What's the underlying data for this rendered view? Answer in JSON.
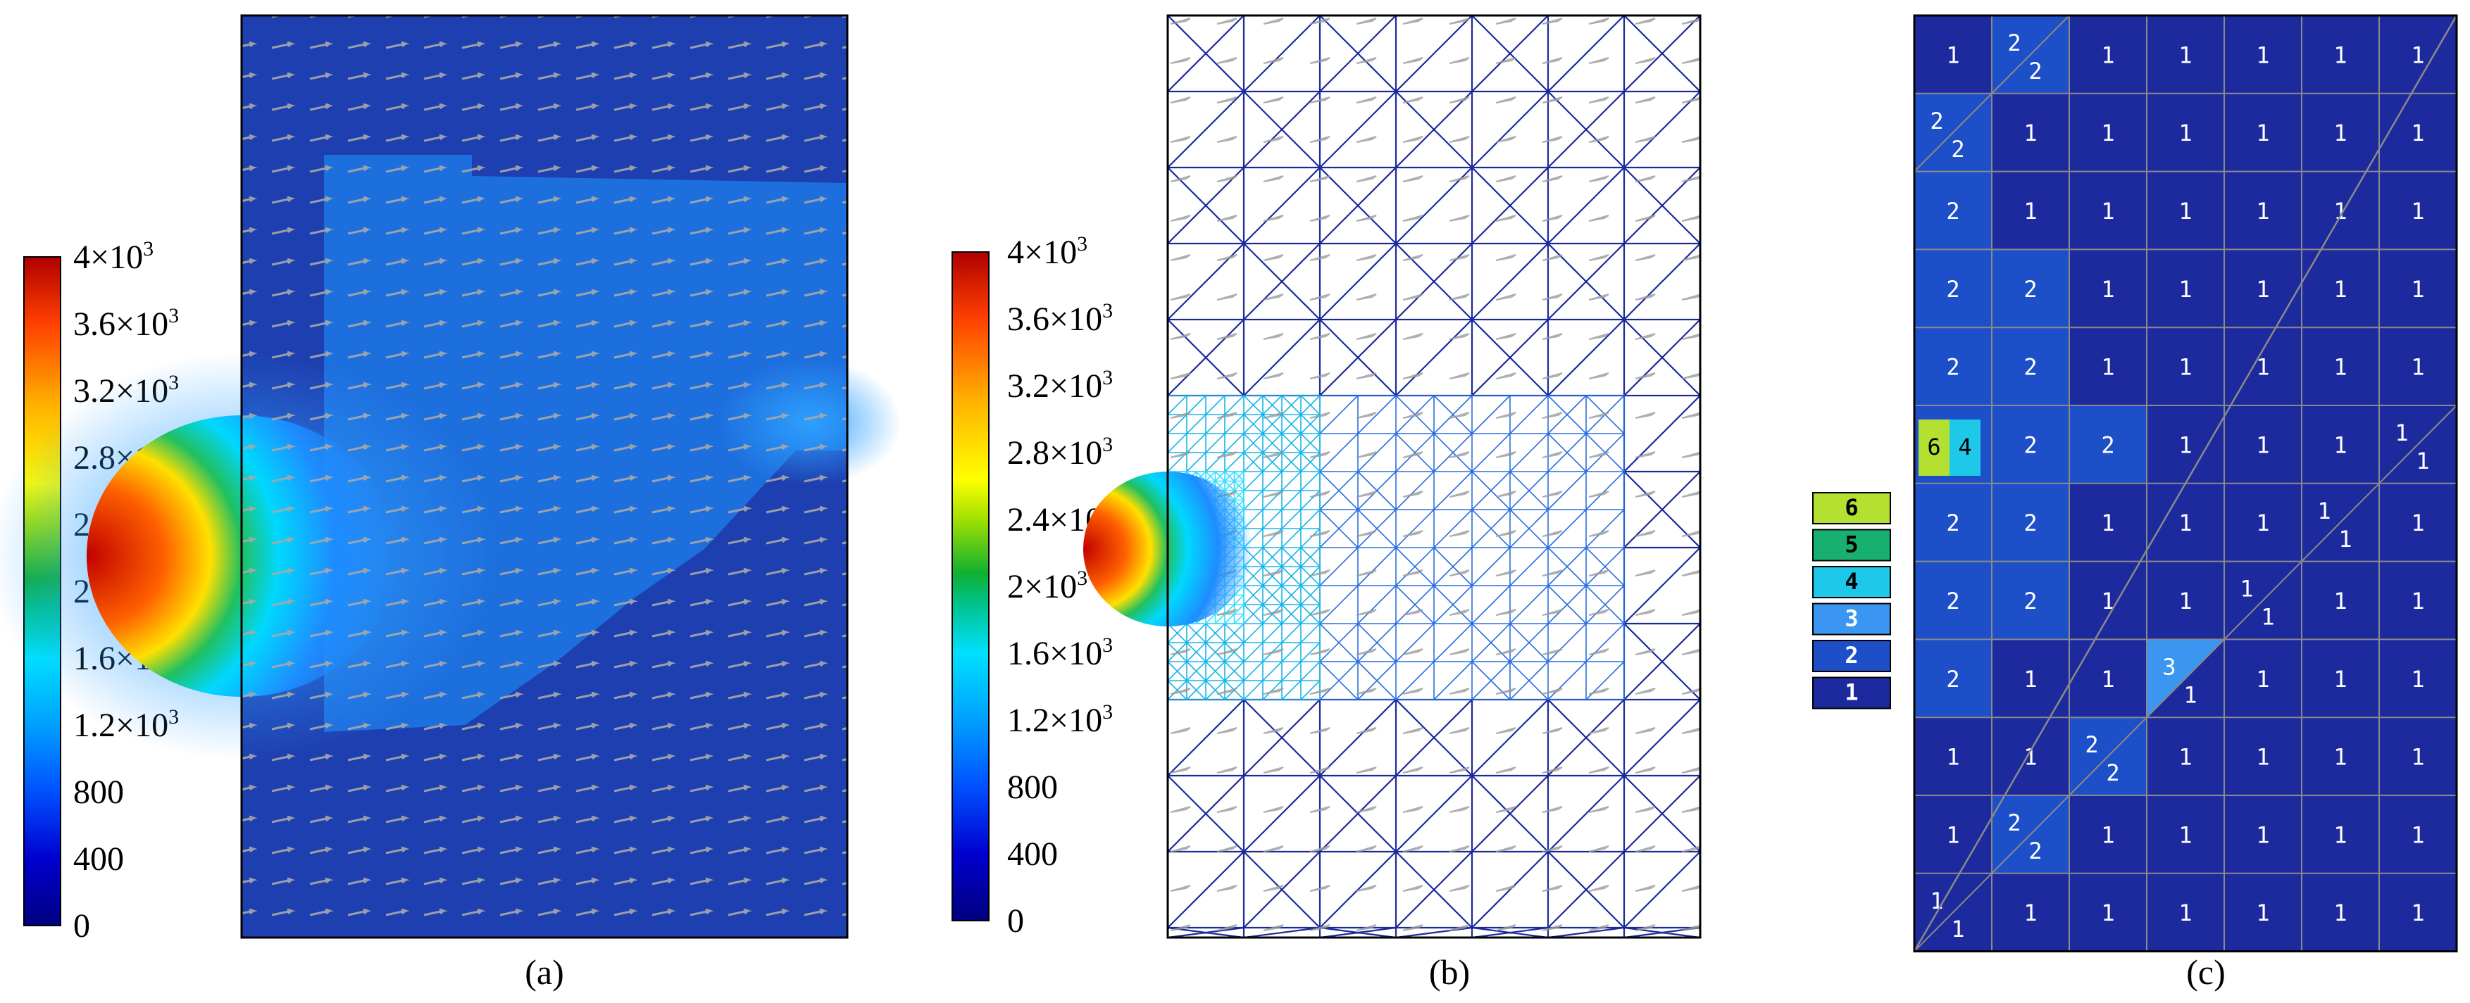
{
  "panels": [
    {
      "id": "a",
      "caption": "(a)"
    },
    {
      "id": "b",
      "caption": "(b)"
    },
    {
      "id": "c",
      "caption": "(c)"
    }
  ],
  "colorbar": {
    "ticks": [
      {
        "value": 4000,
        "mant": "4",
        "exp": "3"
      },
      {
        "value": 3600,
        "mant": "3.6",
        "exp": "3"
      },
      {
        "value": 3200,
        "mant": "3.2",
        "exp": "3"
      },
      {
        "value": 2800,
        "mant": "2.8",
        "exp": "3"
      },
      {
        "value": 2400,
        "mant": "2.4",
        "exp": "3"
      },
      {
        "value": 2000,
        "mant": "2",
        "exp": "3"
      },
      {
        "value": 1600,
        "mant": "1.6",
        "exp": "3"
      },
      {
        "value": 1200,
        "mant": "1.2",
        "exp": "3"
      },
      {
        "value": 800,
        "mant": "800",
        "exp": ""
      },
      {
        "value": 400,
        "mant": "400",
        "exp": ""
      },
      {
        "value": 0,
        "mant": "0",
        "exp": ""
      }
    ],
    "range": [
      0,
      4000
    ],
    "palette": [
      "#00007f",
      "#0000ff",
      "#007fff",
      "#00d0ff",
      "#00c070",
      "#20b030",
      "#a0e000",
      "#ffff00",
      "#ffb000",
      "#ff5000",
      "#c00000"
    ]
  },
  "level_legend": [
    {
      "level": "6",
      "color": "#b4e032",
      "text_color": "#000000"
    },
    {
      "level": "5",
      "color": "#18b070",
      "text_color": "#000000"
    },
    {
      "level": "4",
      "color": "#1ec8e8",
      "text_color": "#000000"
    },
    {
      "level": "3",
      "color": "#3a96f0",
      "text_color": "#ffffff"
    },
    {
      "level": "2",
      "color": "#1d50c8",
      "text_color": "#ffffff"
    },
    {
      "level": "1",
      "color": "#1c2a9e",
      "text_color": "#ffffff"
    }
  ],
  "level_grid": {
    "rows": [
      [
        "1",
        "2/2",
        "1",
        "1",
        "1",
        "1",
        "1"
      ],
      [
        "2/2",
        "1",
        "1",
        "1",
        "1",
        "1",
        "1"
      ],
      [
        "2",
        "1",
        "1",
        "1",
        "1",
        "1",
        "1"
      ],
      [
        "2",
        "2",
        "1",
        "1",
        "1",
        "1",
        "1"
      ],
      [
        "2",
        "2",
        "1",
        "1",
        "1",
        "1",
        "1"
      ],
      [
        "6 4",
        "2",
        "2",
        "1",
        "1",
        "1",
        "1/1"
      ],
      [
        "2",
        "2",
        "1",
        "1",
        "1",
        "1/1",
        "1"
      ],
      [
        "2",
        "2",
        "1",
        "1",
        "1/1",
        "1",
        "1"
      ],
      [
        "2",
        "1",
        "1",
        "3/1",
        "1",
        "1",
        "1"
      ],
      [
        "1",
        "1",
        "2/2",
        "1",
        "1",
        "1",
        "1"
      ],
      [
        "1",
        "2/2",
        "1",
        "1",
        "1",
        "1",
        "1"
      ],
      [
        "1/1",
        "1",
        "1",
        "1",
        "1",
        "1",
        "1"
      ]
    ]
  }
}
